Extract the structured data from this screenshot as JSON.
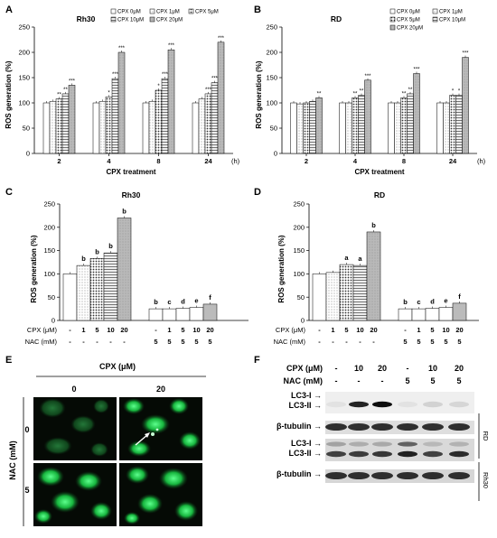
{
  "chart_data": [
    {
      "panel": "A",
      "type": "bar",
      "title": "Rh30",
      "xlabel": "CPX treatment",
      "ylabel": "ROS generation (%)",
      "ylim": [
        0,
        250
      ],
      "yticks": [
        "0",
        "50",
        "100",
        "150",
        "200",
        "250"
      ],
      "categories": [
        "2",
        "4",
        "8",
        "24"
      ],
      "unit_label": "(h)",
      "series": [
        {
          "name": "CPX 0μM",
          "values": [
            100,
            100,
            100,
            100
          ],
          "sig": [
            "",
            "",
            "",
            ""
          ]
        },
        {
          "name": "CPX 1μM",
          "values": [
            103,
            103,
            103,
            108
          ],
          "sig": [
            "",
            "",
            "",
            ""
          ]
        },
        {
          "name": "CPX 5μM",
          "values": [
            108,
            112,
            125,
            118
          ],
          "sig": [
            "**",
            "*",
            "*",
            "***"
          ]
        },
        {
          "name": "CPX 10μM",
          "values": [
            118,
            148,
            148,
            140
          ],
          "sig": [
            "**",
            "***",
            "***",
            "***"
          ]
        },
        {
          "name": "CPX 20μM",
          "values": [
            135,
            200,
            205,
            220
          ],
          "sig": [
            "***",
            "***",
            "***",
            "***"
          ]
        }
      ]
    },
    {
      "panel": "B",
      "type": "bar",
      "title": "RD",
      "xlabel": "CPX treatment",
      "ylabel": "ROS generation (%)",
      "ylim": [
        0,
        250
      ],
      "yticks": [
        "0",
        "50",
        "100",
        "150",
        "200",
        "250"
      ],
      "categories": [
        "2",
        "4",
        "8",
        "24"
      ],
      "unit_label": "(h)",
      "series": [
        {
          "name": "CPX 0μM",
          "values": [
            100,
            100,
            100,
            100
          ],
          "sig": [
            "",
            "",
            "",
            ""
          ]
        },
        {
          "name": "CPX 1μM",
          "values": [
            98,
            100,
            100,
            100
          ],
          "sig": [
            "",
            "",
            "",
            ""
          ]
        },
        {
          "name": "CPX 5μM",
          "values": [
            100,
            110,
            110,
            115
          ],
          "sig": [
            "",
            "**",
            "**",
            "*"
          ]
        },
        {
          "name": "CPX 10μM",
          "values": [
            103,
            115,
            118,
            115
          ],
          "sig": [
            "",
            "**",
            "**",
            "*"
          ]
        },
        {
          "name": "CPX 20μM",
          "values": [
            110,
            145,
            158,
            190
          ],
          "sig": [
            "**",
            "***",
            "***",
            "***"
          ]
        }
      ]
    },
    {
      "panel": "C",
      "type": "bar",
      "title": "Rh30",
      "ylabel": "ROS generation (%)",
      "ylim": [
        0,
        250
      ],
      "yticks": [
        "0",
        "50",
        "100",
        "150",
        "200",
        "250"
      ],
      "row_labels": [
        "CPX (μM)",
        "NAC (mM)"
      ],
      "cpx": [
        "-",
        "1",
        "5",
        "10",
        "20",
        "-",
        "1",
        "5",
        "10",
        "20"
      ],
      "nac": [
        "-",
        "-",
        "-",
        "-",
        "-",
        "5",
        "5",
        "5",
        "5",
        "5"
      ],
      "values": [
        100,
        118,
        133,
        145,
        220,
        25,
        25,
        26,
        28,
        35
      ],
      "letters": [
        "",
        "b",
        "b",
        "b",
        "b",
        "b",
        "c",
        "d",
        "e",
        "f"
      ]
    },
    {
      "panel": "D",
      "type": "bar",
      "title": "RD",
      "ylabel": "ROS generation (%)",
      "ylim": [
        0,
        250
      ],
      "yticks": [
        "0",
        "50",
        "100",
        "150",
        "200",
        "250"
      ],
      "row_labels": [
        "CPX (μM)",
        "NAC (mM)"
      ],
      "cpx": [
        "-",
        "1",
        "5",
        "10",
        "20",
        "-",
        "1",
        "5",
        "10",
        "20"
      ],
      "nac": [
        "-",
        "-",
        "-",
        "-",
        "-",
        "5",
        "5",
        "5",
        "5",
        "5"
      ],
      "values": [
        100,
        103,
        120,
        118,
        190,
        25,
        25,
        26,
        28,
        37
      ],
      "letters": [
        "",
        "",
        "a",
        "a",
        "b",
        "b",
        "c",
        "d",
        "e",
        "f"
      ]
    }
  ],
  "panel_e": {
    "panel": "E",
    "header": "CPX (μM)",
    "cols": [
      "0",
      "20"
    ],
    "row_header": "NAC (mM)",
    "rows": [
      "0",
      "5"
    ]
  },
  "panel_f": {
    "panel": "F",
    "row_labels": [
      "CPX (μM)",
      "NAC (mM)"
    ],
    "cpx": [
      "-",
      "10",
      "20",
      "-",
      "10",
      "20"
    ],
    "nac": [
      "-",
      "-",
      "-",
      "5",
      "5",
      "5"
    ],
    "blot_labels": [
      "LC3-I →",
      "LC3-II →",
      "β-tubulin →",
      "LC3-I →",
      "LC3-II →",
      "β-tubulin →"
    ],
    "cell_lines": [
      "RD",
      "Rh30"
    ]
  }
}
